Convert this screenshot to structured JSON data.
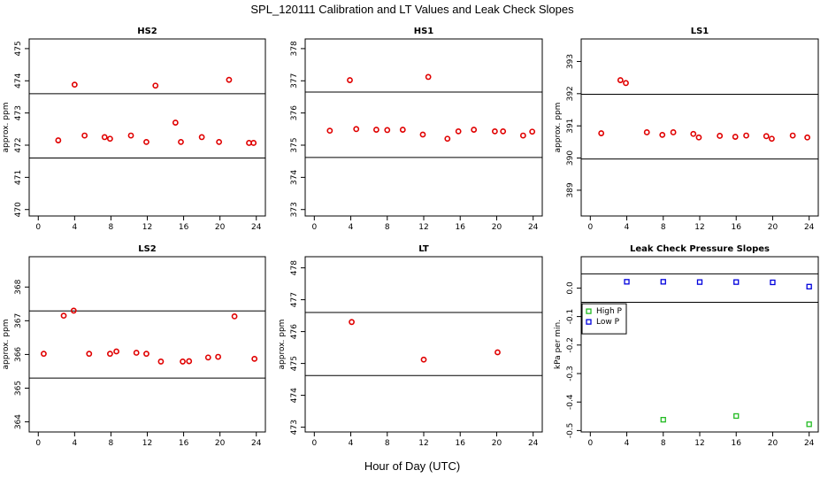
{
  "figure": {
    "title": "SPL_120111  Calibration and LT Values and Leak Check Slopes",
    "xlabel": "Hour of Day (UTC)"
  },
  "chart_data": [
    {
      "type": "scatter",
      "title": "HS2",
      "ylabel": "approx. ppm",
      "xlim": [
        -1,
        25
      ],
      "ylim": [
        469.8,
        475.3
      ],
      "xticks": [
        0,
        4,
        8,
        12,
        16,
        20,
        24
      ],
      "yticks": [
        470,
        471,
        472,
        473,
        474,
        475
      ],
      "hlines": [
        473.6,
        471.6
      ],
      "series": [
        {
          "color": "#e00000",
          "marker": "o",
          "points": [
            [
              2.2,
              472.15
            ],
            [
              4.0,
              473.88
            ],
            [
              5.1,
              472.3
            ],
            [
              7.3,
              472.25
            ],
            [
              7.9,
              472.2
            ],
            [
              10.2,
              472.3
            ],
            [
              11.9,
              472.1
            ],
            [
              12.9,
              473.85
            ],
            [
              15.1,
              472.7
            ],
            [
              15.7,
              472.1
            ],
            [
              18.0,
              472.25
            ],
            [
              19.9,
              472.1
            ],
            [
              21.0,
              474.03
            ],
            [
              23.2,
              472.07
            ],
            [
              23.7,
              472.07
            ]
          ]
        }
      ]
    },
    {
      "type": "scatter",
      "title": "HS1",
      "ylabel": "",
      "xlim": [
        -1,
        25
      ],
      "ylim": [
        372.8,
        378.3
      ],
      "xticks": [
        0,
        4,
        8,
        12,
        16,
        20,
        24
      ],
      "yticks": [
        373,
        374,
        375,
        376,
        377,
        378
      ],
      "hlines": [
        376.65,
        374.62
      ],
      "series": [
        {
          "color": "#e00000",
          "marker": "o",
          "points": [
            [
              1.7,
              375.45
            ],
            [
              3.9,
              377.02
            ],
            [
              4.6,
              375.5
            ],
            [
              6.8,
              375.48
            ],
            [
              8.0,
              375.47
            ],
            [
              9.7,
              375.48
            ],
            [
              11.9,
              375.33
            ],
            [
              12.5,
              377.12
            ],
            [
              14.6,
              375.2
            ],
            [
              15.8,
              375.43
            ],
            [
              17.5,
              375.48
            ],
            [
              19.8,
              375.43
            ],
            [
              20.7,
              375.43
            ],
            [
              22.9,
              375.3
            ],
            [
              23.9,
              375.42
            ]
          ]
        }
      ]
    },
    {
      "type": "scatter",
      "title": "LS1",
      "ylabel": "approx. ppm",
      "xlim": [
        -1,
        25
      ],
      "ylim": [
        388.2,
        393.7
      ],
      "xticks": [
        0,
        4,
        8,
        12,
        16,
        20,
        24
      ],
      "yticks": [
        389,
        390,
        391,
        392,
        393
      ],
      "hlines": [
        391.98,
        389.97
      ],
      "series": [
        {
          "color": "#e00000",
          "marker": "o",
          "points": [
            [
              1.2,
              390.77
            ],
            [
              3.3,
              392.42
            ],
            [
              3.9,
              392.33
            ],
            [
              6.2,
              390.8
            ],
            [
              7.9,
              390.72
            ],
            [
              9.1,
              390.8
            ],
            [
              11.3,
              390.75
            ],
            [
              11.9,
              390.64
            ],
            [
              14.2,
              390.69
            ],
            [
              15.9,
              390.66
            ],
            [
              17.1,
              390.7
            ],
            [
              19.3,
              390.68
            ],
            [
              19.9,
              390.6
            ],
            [
              22.2,
              390.7
            ],
            [
              23.8,
              390.64
            ]
          ]
        }
      ]
    },
    {
      "type": "scatter",
      "title": "LS2",
      "ylabel": "approx. ppm",
      "xlim": [
        -1,
        25
      ],
      "ylim": [
        363.7,
        368.9
      ],
      "xticks": [
        0,
        4,
        8,
        12,
        16,
        20,
        24
      ],
      "yticks": [
        364,
        365,
        366,
        367,
        368
      ],
      "hlines": [
        367.29,
        365.3
      ],
      "series": [
        {
          "color": "#e00000",
          "marker": "o",
          "points": [
            [
              0.6,
              366.02
            ],
            [
              2.8,
              367.15
            ],
            [
              3.9,
              367.3
            ],
            [
              5.6,
              366.02
            ],
            [
              7.9,
              366.02
            ],
            [
              8.6,
              366.09
            ],
            [
              10.8,
              366.05
            ],
            [
              11.9,
              366.02
            ],
            [
              13.5,
              365.79
            ],
            [
              15.9,
              365.79
            ],
            [
              16.6,
              365.8
            ],
            [
              18.7,
              365.91
            ],
            [
              19.8,
              365.93
            ],
            [
              21.6,
              367.13
            ],
            [
              23.8,
              365.87
            ]
          ]
        }
      ]
    },
    {
      "type": "scatter",
      "title": "LT",
      "ylabel": "approx. ppm",
      "xlim": [
        -1,
        25
      ],
      "ylim": [
        472.85,
        478.35
      ],
      "xticks": [
        0,
        4,
        8,
        12,
        16,
        20,
        24
      ],
      "yticks": [
        473,
        474,
        475,
        476,
        477,
        478
      ],
      "hlines": [
        476.6,
        474.62
      ],
      "series": [
        {
          "color": "#e00000",
          "marker": "o",
          "points": [
            [
              4.1,
              476.3
            ],
            [
              12.0,
              475.12
            ],
            [
              20.1,
              475.35
            ]
          ]
        }
      ]
    },
    {
      "type": "scatter",
      "title": "Leak Check Pressure Slopes",
      "ylabel": "kPa per min.",
      "xlim": [
        -1,
        25
      ],
      "ylim": [
        -0.505,
        0.11
      ],
      "xticks": [
        0,
        4,
        8,
        12,
        16,
        20,
        24
      ],
      "yticks": [
        0.0,
        -0.1,
        -0.2,
        -0.3,
        -0.4,
        -0.5
      ],
      "ytick_labels": [
        "0.0",
        "-0.1",
        "-0.2",
        "-0.3",
        "-0.4",
        "-0.5"
      ],
      "hlines": [
        0.05,
        -0.05
      ],
      "legend": "left",
      "series": [
        {
          "name": "High P",
          "color": "#22bb22",
          "marker": "s",
          "points": [
            [
              8.0,
              -0.462
            ],
            [
              16.0,
              -0.449
            ],
            [
              24.0,
              -0.478
            ]
          ]
        },
        {
          "name": "Low P",
          "color": "#0000dd",
          "marker": "s",
          "points": [
            [
              4.0,
              0.022
            ],
            [
              8.0,
              0.022
            ],
            [
              12.0,
              0.021
            ],
            [
              16.0,
              0.021
            ],
            [
              20.0,
              0.02
            ],
            [
              24.0,
              0.005
            ]
          ]
        }
      ]
    }
  ]
}
